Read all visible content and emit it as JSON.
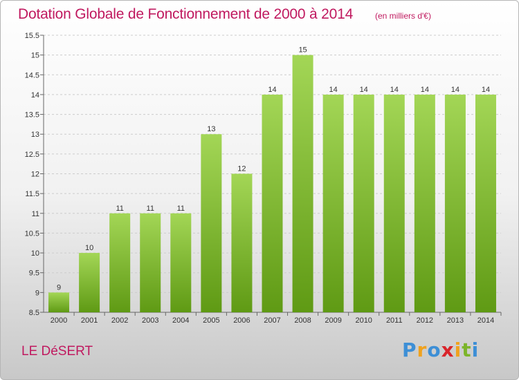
{
  "title": "Dotation Globale de Fonctionnement de 2000 à 2014",
  "subtitle": "(en milliers d'€)",
  "commune": "LE DéSERT",
  "logo": {
    "letters": [
      "P",
      "r",
      "o",
      "x",
      "i",
      "t",
      "i"
    ],
    "colors": [
      "#3d8fd6",
      "#f0a21e",
      "#3d8fd6",
      "#d9242a",
      "#f0a21e",
      "#7cb52a",
      "#3d8fd6"
    ]
  },
  "colors": {
    "title": "#c0195f",
    "bar_top": "#a3d656",
    "bar_bottom": "#5f9a14",
    "grid": "#cccccc"
  },
  "chart_data": {
    "type": "bar",
    "title": "Dotation Globale de Fonctionnement de 2000 à 2014",
    "subtitle": "(en milliers d'€)",
    "categories": [
      "2000",
      "2001",
      "2002",
      "2003",
      "2004",
      "2005",
      "2006",
      "2007",
      "2008",
      "2009",
      "2010",
      "2011",
      "2012",
      "2013",
      "2014"
    ],
    "values": [
      9,
      10,
      11,
      11,
      11,
      13,
      12,
      14,
      15,
      14,
      14,
      14,
      14,
      14,
      14
    ],
    "value_labels": [
      "9",
      "10",
      "11",
      "11",
      "11",
      "13",
      "12",
      "14",
      "15",
      "14",
      "14",
      "14",
      "14",
      "14",
      "14"
    ],
    "ylim": [
      8.5,
      15.5
    ],
    "yticks": [
      8.5,
      9,
      9.5,
      10,
      10.5,
      11,
      11.5,
      12,
      12.5,
      13,
      13.5,
      14,
      14.5,
      15,
      15.5
    ],
    "ytick_labels": [
      "8.5",
      "9",
      "9.5",
      "10",
      "10.5",
      "11",
      "11.5",
      "12",
      "12.5",
      "13",
      "13.5",
      "14",
      "14.5",
      "15",
      "15.5"
    ],
    "grid": true,
    "xlabel": "",
    "ylabel": ""
  }
}
